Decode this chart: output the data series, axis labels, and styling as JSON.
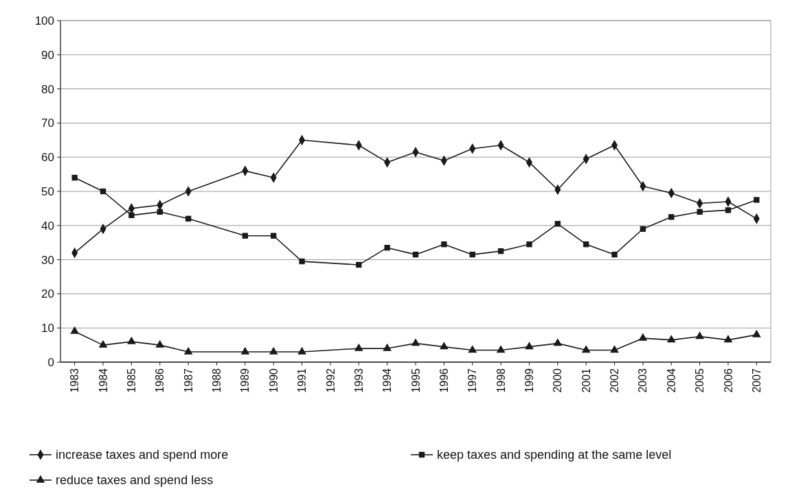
{
  "chart_data": {
    "type": "line",
    "xlim": [
      1982.5,
      2007.5
    ],
    "xticks": [
      1983,
      1984,
      1985,
      1986,
      1987,
      1988,
      1989,
      1990,
      1991,
      1992,
      1993,
      1994,
      1995,
      1996,
      1997,
      1998,
      1999,
      2000,
      2001,
      2002,
      2003,
      2004,
      2005,
      2006,
      2007
    ],
    "ylim": [
      0,
      100
    ],
    "yticks": [
      0,
      10,
      20,
      30,
      40,
      50,
      60,
      70,
      80,
      90,
      100
    ],
    "grid": "y",
    "legend": "bottom",
    "x": [
      1983,
      1984,
      1985,
      1986,
      1987,
      1989,
      1990,
      1991,
      1993,
      1994,
      1995,
      1996,
      1997,
      1998,
      1999,
      2000,
      2001,
      2002,
      2003,
      2004,
      2005,
      2006,
      2007
    ],
    "series": [
      {
        "name": "increase taxes and spend more",
        "color": "#1a1a1a",
        "marker": "diamond",
        "values": [
          32,
          39,
          45,
          46,
          50,
          56,
          54,
          65,
          63.5,
          58.5,
          61.5,
          59,
          62.5,
          63.5,
          58.5,
          50.5,
          59.5,
          63.5,
          51.5,
          49.5,
          46.5,
          47,
          42
        ]
      },
      {
        "name": "keep taxes and spending at the same level",
        "color": "#1a1a1a",
        "marker": "square",
        "values": [
          54,
          50,
          43,
          44,
          42,
          37,
          37,
          29.5,
          28.5,
          33.5,
          31.5,
          34.5,
          31.5,
          32.5,
          34.5,
          40.5,
          34.5,
          31.5,
          39,
          42.5,
          44,
          44.5,
          47.5
        ]
      },
      {
        "name": "reduce taxes and spend less",
        "color": "#1a1a1a",
        "marker": "triangle",
        "values": [
          9,
          5,
          6,
          5,
          3,
          3,
          3,
          3,
          4,
          4,
          5.5,
          4.5,
          3.5,
          3.5,
          4.5,
          5.5,
          3.5,
          3.5,
          7,
          6.5,
          7.5,
          6.5,
          8
        ]
      }
    ]
  }
}
